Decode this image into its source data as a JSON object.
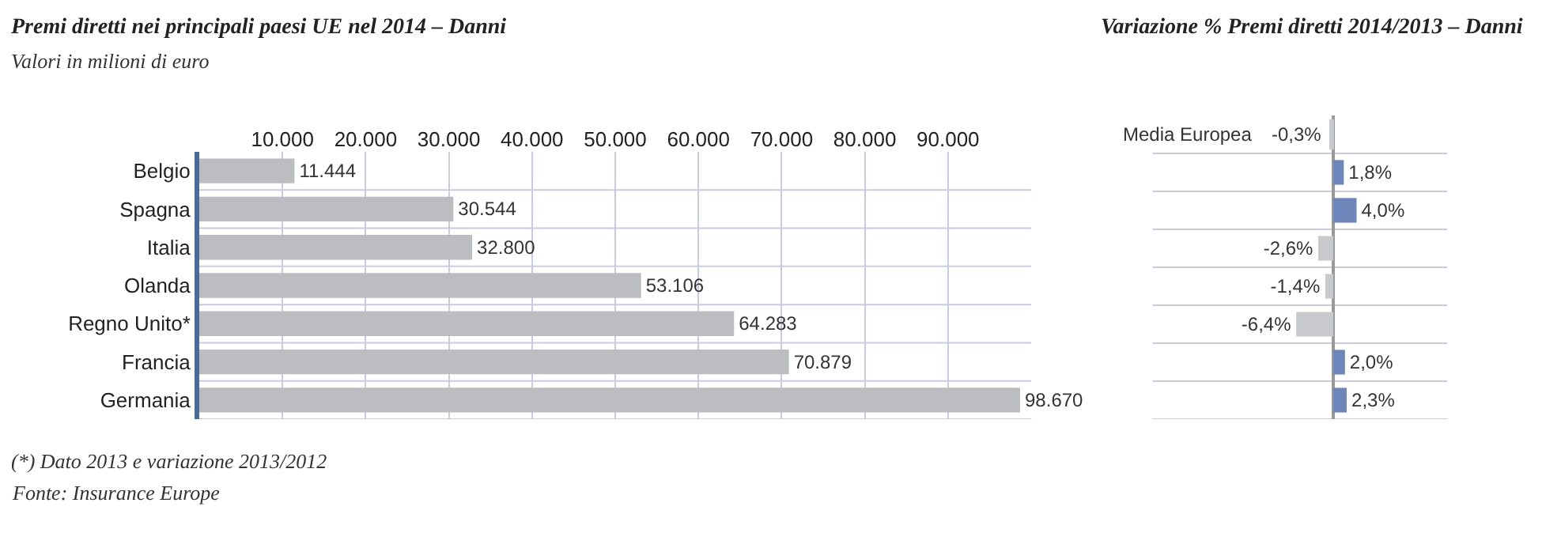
{
  "chart_data": [
    {
      "type": "bar",
      "orientation": "horizontal",
      "title": "Premi diretti nei principali paesi UE nel 2014 – Danni",
      "subtitle": "Valori in milioni di euro",
      "categories": [
        "Belgio",
        "Spagna",
        "Italia",
        "Olanda",
        "Regno Unito*",
        "Francia",
        "Germania"
      ],
      "values": [
        11444,
        30544,
        32800,
        53106,
        64283,
        70879,
        98670
      ],
      "value_labels": [
        "11.444",
        "30.544",
        "32.800",
        "53.106",
        "64.283",
        "70.879",
        "98.670"
      ],
      "color": "#bcbdc1",
      "xlim": [
        0,
        100000
      ],
      "xticks": [
        {
          "value": 10000,
          "label": "10.000"
        },
        {
          "value": 20000,
          "label": "20.000"
        },
        {
          "value": 30000,
          "label": "30.000"
        },
        {
          "value": 40000,
          "label": "40.000"
        },
        {
          "value": 50000,
          "label": "50.000"
        },
        {
          "value": 60000,
          "label": "60.000"
        },
        {
          "value": 70000,
          "label": "70.000"
        },
        {
          "value": 80000,
          "label": "80.000"
        },
        {
          "value": 90000,
          "label": "90.000"
        }
      ],
      "grid": "x",
      "annotations": [
        "(*) Dato 2013 e variazione 2013/2012",
        "Fonte: Insurance Europe"
      ]
    },
    {
      "type": "bar",
      "orientation": "horizontal",
      "title": "Variazione % Premi diretti 2014/2013 – Danni",
      "categories": [
        null,
        null,
        null,
        null,
        null,
        null,
        null
      ],
      "values": [
        1.8,
        4.0,
        -2.6,
        -1.4,
        -6.4,
        2.0,
        2.3
      ],
      "value_labels": [
        "1,8%",
        "4,0%",
        "-2,6%",
        "-1,4%",
        "-6,4%",
        "2,0%",
        "2,3%"
      ],
      "colors": [
        "#6e87bb",
        "#6e87bb",
        "#c8c9cc",
        "#c8c9cc",
        "#c8c9cc",
        "#6e87bb",
        "#6e87bb"
      ],
      "ref_lines": [
        {
          "axis": "x",
          "value": -0.3,
          "label": "-0,3%",
          "color": "#c8c9cc"
        }
      ],
      "annotations": [
        "Media Europea"
      ]
    }
  ]
}
